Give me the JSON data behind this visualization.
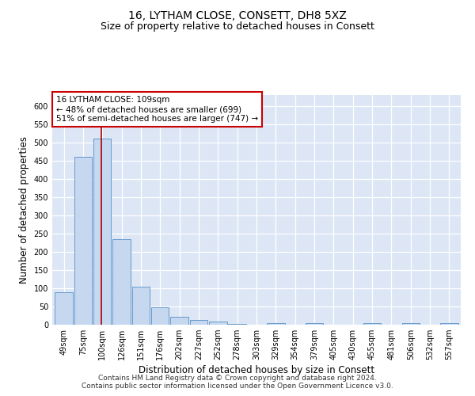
{
  "title": "16, LYTHAM CLOSE, CONSETT, DH8 5XZ",
  "subtitle": "Size of property relative to detached houses in Consett",
  "xlabel": "Distribution of detached houses by size in Consett",
  "ylabel": "Number of detached properties",
  "categories": [
    "49sqm",
    "75sqm",
    "100sqm",
    "126sqm",
    "151sqm",
    "176sqm",
    "202sqm",
    "227sqm",
    "252sqm",
    "278sqm",
    "303sqm",
    "329sqm",
    "354sqm",
    "379sqm",
    "405sqm",
    "430sqm",
    "455sqm",
    "481sqm",
    "506sqm",
    "532sqm",
    "557sqm"
  ],
  "values": [
    90,
    460,
    510,
    235,
    105,
    47,
    22,
    12,
    8,
    3,
    0,
    5,
    0,
    5,
    0,
    0,
    4,
    0,
    4,
    0,
    4
  ],
  "bar_color": "#c5d8f0",
  "bar_edge_color": "#6699cc",
  "bar_edge_width": 0.7,
  "red_line_x": 1.95,
  "red_line_color": "#aa0000",
  "annotation_text": "16 LYTHAM CLOSE: 109sqm\n← 48% of detached houses are smaller (699)\n51% of semi-detached houses are larger (747) →",
  "annotation_box_color": "white",
  "annotation_box_edge": "#cc0000",
  "ylim": [
    0,
    630
  ],
  "yticks": [
    0,
    50,
    100,
    150,
    200,
    250,
    300,
    350,
    400,
    450,
    500,
    550,
    600
  ],
  "background_color": "#dce6f5",
  "grid_color": "#ffffff",
  "footer": "Contains HM Land Registry data © Crown copyright and database right 2024.\nContains public sector information licensed under the Open Government Licence v3.0.",
  "title_fontsize": 10,
  "subtitle_fontsize": 9,
  "ylabel_fontsize": 8.5,
  "xlabel_fontsize": 8.5,
  "tick_fontsize": 7,
  "annotation_fontsize": 7.5,
  "footer_fontsize": 6.5
}
